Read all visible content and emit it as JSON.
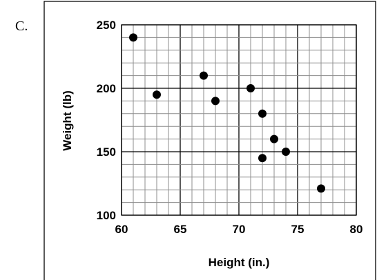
{
  "option_label": "C.",
  "chart_data": {
    "type": "scatter",
    "title": "",
    "xlabel": "Height (in.)",
    "ylabel": "Weight (lb)",
    "xlim": [
      60,
      80
    ],
    "ylim": [
      100,
      250
    ],
    "x_ticks": [
      60,
      65,
      70,
      75,
      80
    ],
    "y_ticks": [
      100,
      150,
      200,
      250
    ],
    "x_minor_step": 1,
    "y_minor_step": 10,
    "grid": true,
    "legend": "none",
    "marker_color": "#000000",
    "points": [
      {
        "x": 61,
        "y": 240
      },
      {
        "x": 63,
        "y": 195
      },
      {
        "x": 67,
        "y": 210
      },
      {
        "x": 68,
        "y": 190
      },
      {
        "x": 71,
        "y": 200
      },
      {
        "x": 72,
        "y": 180
      },
      {
        "x": 72,
        "y": 145
      },
      {
        "x": 73,
        "y": 160
      },
      {
        "x": 74,
        "y": 150
      },
      {
        "x": 77,
        "y": 121
      }
    ]
  }
}
